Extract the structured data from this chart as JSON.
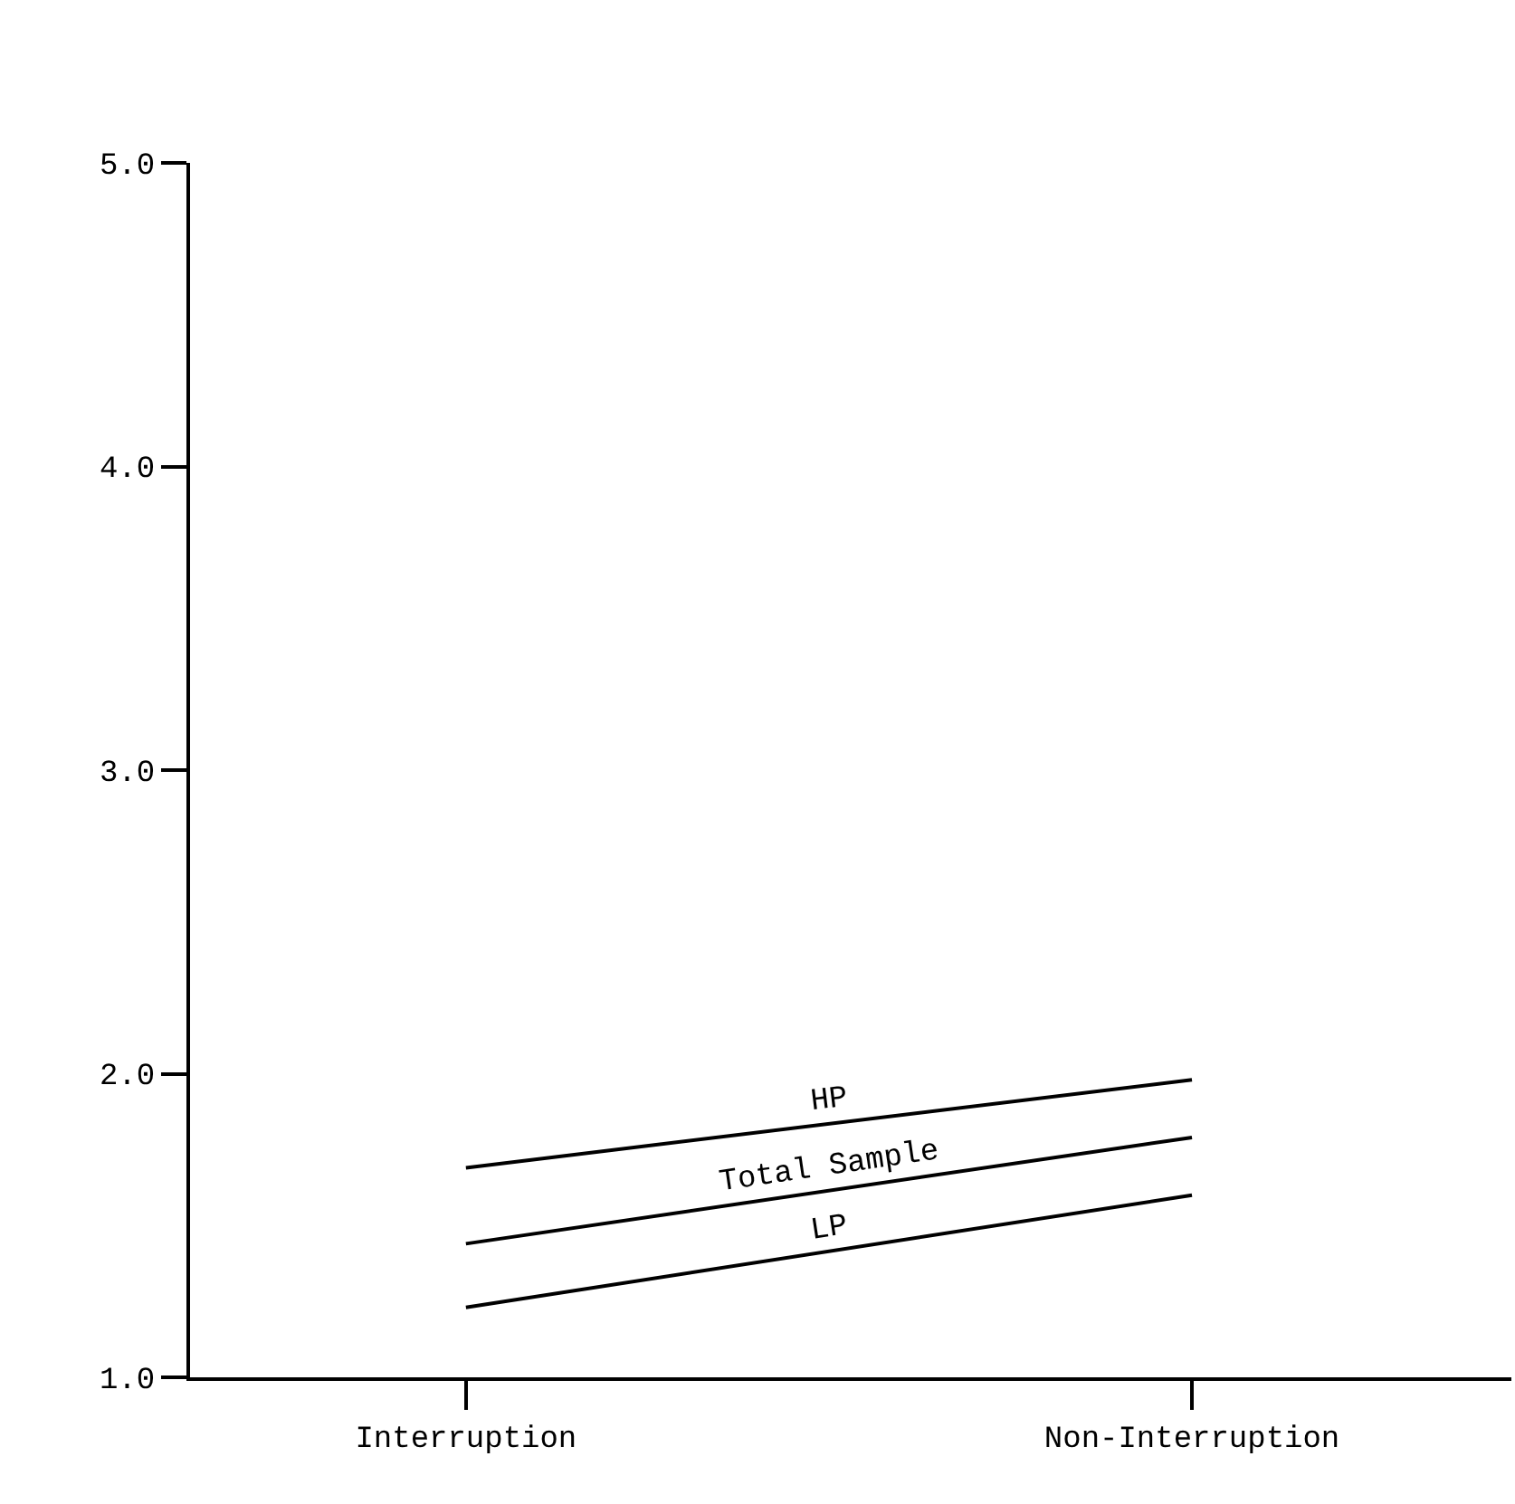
{
  "chart_data": {
    "type": "line",
    "categories": [
      "Interruption",
      "Non-Interruption"
    ],
    "series": [
      {
        "name": "HP",
        "color": "#000000",
        "values": [
          1.69,
          1.98
        ]
      },
      {
        "name": "Total Sample",
        "color": "#000000",
        "values": [
          1.44,
          1.79
        ]
      },
      {
        "name": "LP",
        "color": "#000000",
        "values": [
          1.23,
          1.6
        ]
      }
    ],
    "ylim": [
      1.0,
      5.0
    ],
    "yticks": [
      {
        "value": 1.0,
        "label": "1.0"
      },
      {
        "value": 2.0,
        "label": "2.0"
      },
      {
        "value": 3.0,
        "label": "3.0"
      },
      {
        "value": 4.0,
        "label": "4.0"
      },
      {
        "value": 5.0,
        "label": "5.0"
      }
    ],
    "marker": "none",
    "line_style": "solid"
  }
}
